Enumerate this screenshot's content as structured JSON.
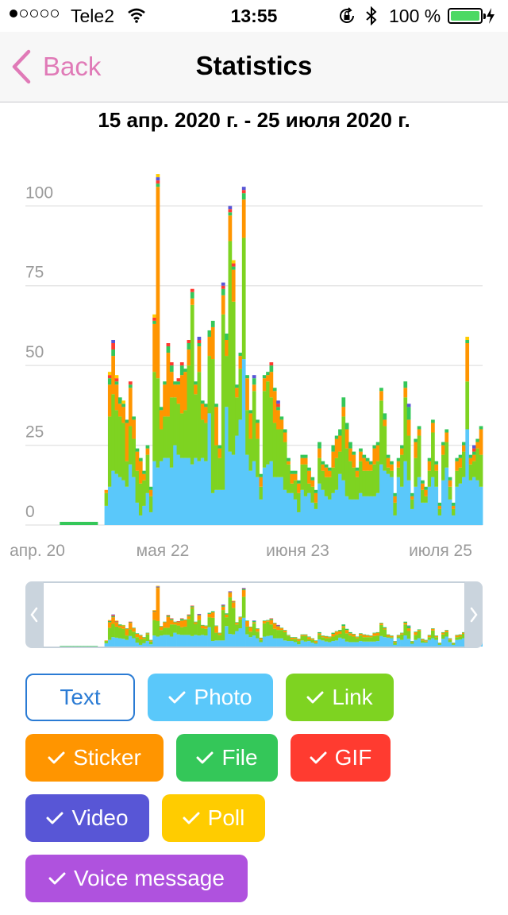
{
  "status_bar": {
    "carrier": "Tele2",
    "time": "13:55",
    "battery_text": "100 %",
    "signal_bars": 1,
    "icons": [
      "signal-dots-icon",
      "wifi-icon",
      "rotation-lock-icon",
      "bluetooth-icon",
      "battery-icon",
      "charging-icon"
    ]
  },
  "nav": {
    "back_label": "Back",
    "title": "Statistics",
    "accent": "#e07ab7"
  },
  "date_range": "15 апр. 2020 г. - 25 июля 2020 г.",
  "chart_data": {
    "type": "bar",
    "stacked": true,
    "x_ticks": [
      "апр. 20",
      "мая 22",
      "июня 23",
      "июля 25"
    ],
    "y_ticks": [
      0,
      25,
      50,
      75,
      100
    ],
    "ylim": [
      0,
      115
    ],
    "grid": true,
    "colors": {
      "Photo": "#5ac8fa",
      "Link": "#7ed321",
      "Sticker": "#ff9500",
      "File": "#34c759",
      "GIF": "#ff3b30",
      "Video": "#5856d6",
      "Poll": "#ffcc00",
      "Voice message": "#af52de"
    },
    "series": [
      {
        "name": "Photo",
        "values": [
          0,
          0,
          0,
          0,
          0,
          0,
          0,
          0,
          0,
          0,
          0,
          0,
          0,
          0,
          0,
          0,
          0,
          0,
          0,
          0,
          0,
          0,
          0,
          6,
          12,
          17,
          16,
          15,
          14,
          12,
          19,
          15,
          7,
          3,
          6,
          10,
          4,
          20,
          18,
          20,
          21,
          21,
          18,
          25,
          22,
          21,
          21,
          21,
          19,
          21,
          20,
          21,
          20,
          35,
          10,
          11,
          11,
          11,
          37,
          23,
          22,
          28,
          33,
          52,
          22,
          17,
          20,
          15,
          8,
          18,
          19,
          20,
          15,
          15,
          15,
          11,
          10,
          10,
          8,
          4,
          11,
          9,
          10,
          7,
          5,
          13,
          11,
          9,
          8,
          10,
          11,
          16,
          14,
          9,
          8,
          8,
          8,
          10,
          9,
          9,
          9,
          9,
          10,
          19,
          17,
          16,
          15,
          3,
          15,
          12,
          20,
          14,
          5,
          12,
          15,
          7,
          7,
          12,
          15,
          12,
          3,
          14,
          18,
          8,
          3,
          12,
          13,
          15,
          30,
          14,
          15,
          14,
          12
        ]
      },
      {
        "name": "Link",
        "values": [
          0,
          0,
          0,
          0,
          0,
          0,
          0,
          0,
          0,
          0,
          0,
          0,
          0,
          0,
          0,
          0,
          0,
          0,
          0,
          0,
          0,
          0,
          0,
          4,
          22,
          24,
          20,
          19,
          18,
          8,
          12,
          12,
          10,
          10,
          8,
          12,
          5,
          28,
          28,
          10,
          13,
          13,
          22,
          15,
          16,
          14,
          15,
          29,
          50,
          20,
          28,
          12,
          12,
          18,
          42,
          14,
          10,
          55,
          16,
          66,
          48,
          12,
          16,
          38,
          14,
          10,
          22,
          12,
          4,
          24,
          26,
          20,
          17,
          15,
          15,
          15,
          9,
          3,
          6,
          6,
          8,
          10,
          3,
          5,
          2,
          8,
          6,
          6,
          7,
          8,
          10,
          7,
          20,
          15,
          12,
          10,
          7,
          10,
          8,
          8,
          8,
          10,
          10,
          20,
          14,
          2,
          2,
          4,
          3,
          10,
          20,
          14,
          3,
          9,
          13,
          4,
          2,
          5,
          14,
          5,
          2,
          8,
          8,
          4,
          2,
          5,
          5,
          8,
          15,
          5,
          5,
          10,
          10
        ]
      },
      {
        "name": "Sticker",
        "values": [
          0,
          0,
          0,
          0,
          0,
          0,
          0,
          0,
          0,
          0,
          0,
          0,
          0,
          0,
          0,
          0,
          0,
          0,
          0,
          0,
          0,
          0,
          0,
          1,
          10,
          12,
          8,
          4,
          5,
          12,
          12,
          6,
          6,
          7,
          2,
          2,
          2,
          15,
          60,
          6,
          10,
          20,
          8,
          4,
          6,
          12,
          12,
          5,
          2,
          3,
          8,
          5,
          5,
          6,
          10,
          12,
          3,
          6,
          5,
          8,
          10,
          3,
          4,
          12,
          10,
          8,
          2,
          5,
          3,
          4,
          2,
          8,
          10,
          6,
          3,
          3,
          1,
          3,
          2,
          3,
          2,
          2,
          4,
          2,
          3,
          3,
          2,
          3,
          2,
          5,
          6,
          5,
          3,
          6,
          4,
          4,
          2,
          3,
          4,
          3,
          2,
          5,
          5,
          3,
          2,
          3,
          2,
          2,
          2,
          2,
          3,
          5,
          1,
          5,
          2,
          2,
          2,
          3,
          3,
          2,
          1,
          3,
          3,
          2,
          1,
          3,
          3,
          2,
          12,
          2,
          2,
          2,
          8
        ]
      },
      {
        "name": "File",
        "values": [
          0,
          0,
          0,
          0,
          0,
          0,
          0,
          0,
          0,
          0,
          1,
          1,
          1,
          1,
          1,
          1,
          1,
          1,
          1,
          1,
          1,
          0,
          0,
          0,
          2,
          2,
          1,
          2,
          1,
          1,
          1,
          1,
          1,
          1,
          1,
          1,
          1,
          1,
          1,
          1,
          1,
          2,
          2,
          1,
          1,
          3,
          1,
          2,
          2,
          1,
          1,
          1,
          1,
          2,
          2,
          1,
          1,
          2,
          2,
          1,
          1,
          1,
          1,
          2,
          1,
          1,
          2,
          1,
          1,
          1,
          1,
          2,
          1,
          1,
          1,
          1,
          1,
          1,
          1,
          1,
          1,
          1,
          1,
          1,
          1,
          2,
          1,
          1,
          1,
          2,
          1,
          2,
          3,
          2,
          2,
          1,
          1,
          1,
          1,
          1,
          1,
          1,
          1,
          1,
          2,
          1,
          1,
          1,
          1,
          1,
          2,
          4,
          1,
          1,
          1,
          1,
          1,
          1,
          1,
          1,
          1,
          1,
          1,
          1,
          1,
          1,
          1,
          1,
          1,
          1,
          1,
          1,
          1
        ]
      },
      {
        "name": "GIF",
        "values": [
          0,
          0,
          0,
          0,
          0,
          0,
          0,
          0,
          0,
          0,
          0,
          0,
          0,
          0,
          0,
          0,
          0,
          0,
          0,
          0,
          0,
          0,
          0,
          0,
          1,
          2,
          1,
          0,
          0,
          0,
          1,
          0,
          0,
          0,
          0,
          0,
          0,
          1,
          1,
          0,
          0,
          1,
          1,
          0,
          1,
          1,
          0,
          1,
          1,
          0,
          1,
          0,
          0,
          0,
          0,
          0,
          0,
          1,
          0,
          1,
          1,
          0,
          0,
          1,
          0,
          0,
          0,
          0,
          0,
          0,
          0,
          1,
          0,
          1,
          0,
          0,
          0,
          0,
          0,
          0,
          0,
          0,
          0,
          0,
          0,
          0,
          0,
          0,
          0,
          0,
          0,
          0,
          0,
          0,
          0,
          0,
          0,
          0,
          0,
          0,
          0,
          0,
          0,
          0,
          0,
          0,
          0,
          0,
          0,
          0,
          0,
          0,
          0,
          0,
          0,
          0,
          0,
          0,
          0,
          0,
          0,
          0,
          0,
          0,
          0,
          0,
          0,
          0,
          0,
          0,
          1,
          0,
          0
        ]
      },
      {
        "name": "Video",
        "values": [
          0,
          0,
          0,
          0,
          0,
          0,
          0,
          0,
          0,
          0,
          0,
          0,
          0,
          0,
          0,
          0,
          0,
          0,
          0,
          0,
          0,
          0,
          0,
          0,
          0,
          1,
          0,
          0,
          0,
          0,
          0,
          0,
          0,
          0,
          0,
          0,
          0,
          0,
          1,
          0,
          0,
          0,
          0,
          0,
          0,
          0,
          0,
          0,
          0,
          0,
          1,
          0,
          0,
          0,
          0,
          0,
          0,
          1,
          0,
          1,
          0,
          0,
          0,
          1,
          0,
          0,
          1,
          0,
          0,
          0,
          0,
          0,
          0,
          1,
          0,
          0,
          0,
          0,
          0,
          0,
          0,
          0,
          0,
          0,
          0,
          0,
          0,
          0,
          0,
          0,
          0,
          0,
          0,
          0,
          0,
          0,
          0,
          0,
          0,
          0,
          0,
          0,
          0,
          0,
          0,
          0,
          0,
          0,
          0,
          0,
          0,
          1,
          0,
          0,
          0,
          0,
          0,
          0,
          0,
          0,
          0,
          0,
          0,
          0,
          0,
          0,
          0,
          0,
          0,
          0,
          1,
          0,
          0
        ]
      },
      {
        "name": "Poll",
        "values": [
          0,
          0,
          0,
          0,
          0,
          0,
          0,
          0,
          0,
          0,
          0,
          0,
          0,
          0,
          0,
          0,
          0,
          0,
          0,
          0,
          0,
          0,
          0,
          0,
          1,
          0,
          1,
          0,
          1,
          0,
          0,
          0,
          0,
          0,
          0,
          0,
          0,
          1,
          1,
          0,
          0,
          0,
          0,
          0,
          0,
          0,
          0,
          0,
          0,
          0,
          0,
          0,
          0,
          0,
          0,
          0,
          0,
          0,
          0,
          0,
          1,
          0,
          0,
          0,
          0,
          0,
          0,
          0,
          0,
          0,
          0,
          0,
          0,
          0,
          0,
          0,
          0,
          0,
          0,
          0,
          0,
          0,
          0,
          0,
          0,
          0,
          0,
          0,
          0,
          0,
          0,
          0,
          0,
          0,
          0,
          0,
          0,
          0,
          0,
          0,
          0,
          0,
          0,
          0,
          0,
          0,
          0,
          0,
          0,
          0,
          0,
          0,
          0,
          0,
          0,
          0,
          0,
          0,
          0,
          0,
          0,
          0,
          0,
          0,
          0,
          0,
          0,
          0,
          1,
          0,
          0,
          0,
          0
        ]
      },
      {
        "name": "Voice message",
        "values": [
          0,
          0,
          0,
          0,
          0,
          0,
          0,
          0,
          0,
          0,
          0,
          0,
          0,
          0,
          0,
          0,
          0,
          0,
          0,
          0,
          0,
          0,
          0,
          0,
          0,
          0,
          0,
          0,
          0,
          0,
          0,
          0,
          0,
          0,
          0,
          0,
          0,
          0,
          0,
          0,
          0,
          0,
          0,
          0,
          0,
          0,
          0,
          0,
          0,
          0,
          0,
          0,
          0,
          0,
          0,
          0,
          0,
          0,
          0,
          0,
          0,
          0,
          0,
          0,
          0,
          0,
          0,
          0,
          0,
          0,
          0,
          0,
          0,
          0,
          0,
          0,
          0,
          0,
          0,
          0,
          0,
          0,
          0,
          0,
          0,
          0,
          0,
          0,
          0,
          0,
          0,
          0,
          0,
          0,
          0,
          0,
          0,
          0,
          0,
          0,
          0,
          0,
          0,
          0,
          0,
          0,
          0,
          0,
          0,
          0,
          0,
          0,
          0,
          0,
          0,
          0,
          0,
          0,
          0,
          0,
          0,
          0,
          0,
          0,
          0,
          0,
          0,
          0,
          0,
          0,
          0,
          0,
          0
        ]
      }
    ]
  },
  "minimap": {
    "left_handle_icon": "chevron-left-icon",
    "right_handle_icon": "chevron-right-icon"
  },
  "filters": [
    {
      "label": "Text",
      "checked": false,
      "color": "#2a7bd4"
    },
    {
      "label": "Photo",
      "checked": true,
      "color": "#5ac8fa"
    },
    {
      "label": "Link",
      "checked": true,
      "color": "#7ed321"
    },
    {
      "label": "Sticker",
      "checked": true,
      "color": "#ff9500"
    },
    {
      "label": "File",
      "checked": true,
      "color": "#34c759"
    },
    {
      "label": "GIF",
      "checked": true,
      "color": "#ff3b30"
    },
    {
      "label": "Video",
      "checked": true,
      "color": "#5856d6"
    },
    {
      "label": "Poll",
      "checked": true,
      "color": "#ffcc00"
    },
    {
      "label": "Voice message",
      "checked": true,
      "color": "#af52de"
    }
  ]
}
